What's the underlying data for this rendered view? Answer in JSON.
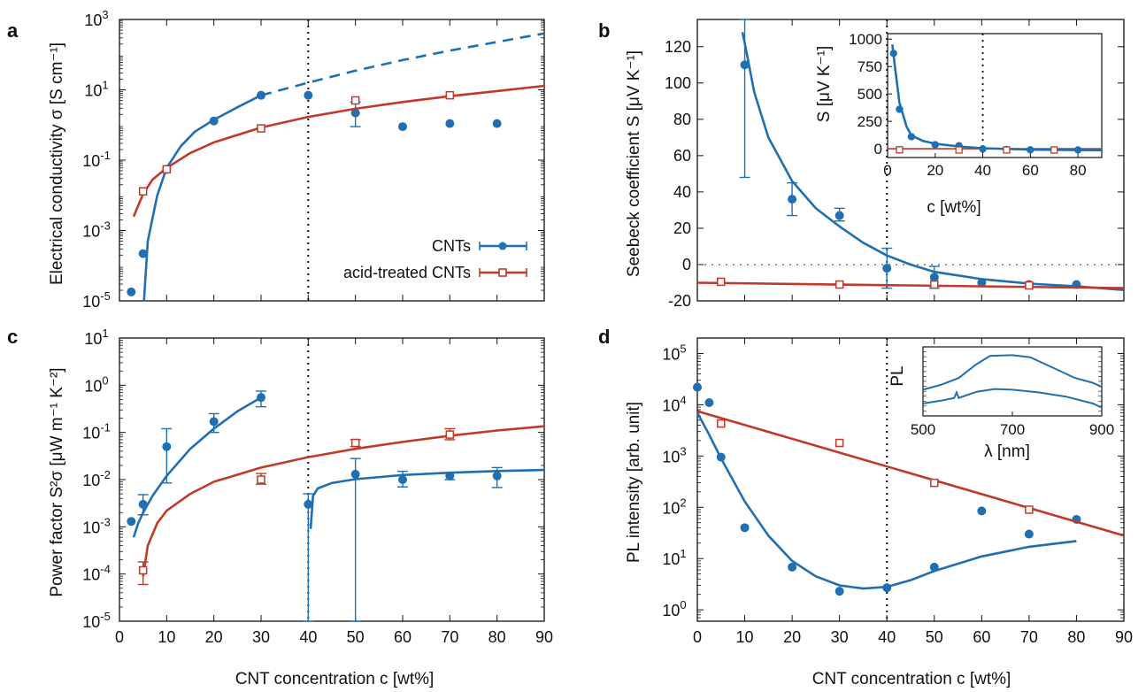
{
  "colors": {
    "cnt": "#1f6fb2",
    "acid": "#c0392b",
    "axis": "#111111"
  },
  "x_shared_label": "CNT concentration c [wt%]",
  "chart_data": [
    {
      "panel": "a",
      "type": "scatter",
      "ylabel": "Electrical conductivity σ [S cm⁻¹]",
      "y_scale": "log",
      "xlim": [
        0,
        90
      ],
      "ylim": [
        1e-05,
        1000
      ],
      "x_ticks": [
        0,
        10,
        20,
        30,
        40,
        50,
        60,
        70,
        80,
        90
      ],
      "y_ticks": [
        {
          "v": 1e-05,
          "base": "10",
          "exp": "-5"
        },
        {
          "v": 0.001,
          "base": "10",
          "exp": "-3"
        },
        {
          "v": 0.1,
          "base": "10",
          "exp": "-1"
        },
        {
          "v": 10,
          "base": "10",
          "exp": "1"
        },
        {
          "v": 1000,
          "base": "10",
          "exp": "3"
        }
      ],
      "legend": {
        "position": "bottom-right",
        "entries": [
          "CNTs",
          "acid-treated CNTs"
        ]
      },
      "series": [
        {
          "name": "CNTs",
          "marker": "circle",
          "points": [
            {
              "x": 2.5,
              "y": 1.8e-05
            },
            {
              "x": 5,
              "y": 0.00022
            },
            {
              "x": 10,
              "y": 0.055
            },
            {
              "x": 20,
              "y": 1.3
            },
            {
              "x": 30,
              "y": 7
            },
            {
              "x": 40,
              "y": 7
            },
            {
              "x": 50,
              "y": 2.2,
              "ylo": 0.9,
              "yhi": 4.5
            },
            {
              "x": 60,
              "y": 0.9
            },
            {
              "x": 70,
              "y": 1.1
            },
            {
              "x": 80,
              "y": 1.1
            }
          ],
          "fit": [
            {
              "x": 5.2,
              "y": 9e-06
            },
            {
              "x": 6,
              "y": 0.0005
            },
            {
              "x": 8,
              "y": 0.01
            },
            {
              "x": 10,
              "y": 0.06
            },
            {
              "x": 13,
              "y": 0.25
            },
            {
              "x": 16,
              "y": 0.65
            },
            {
              "x": 20,
              "y": 1.4
            },
            {
              "x": 25,
              "y": 3.2
            },
            {
              "x": 30,
              "y": 7
            }
          ],
          "fit_dashed": [
            {
              "x": 30,
              "y": 7
            },
            {
              "x": 40,
              "y": 16
            },
            {
              "x": 50,
              "y": 35
            },
            {
              "x": 60,
              "y": 70
            },
            {
              "x": 70,
              "y": 130
            },
            {
              "x": 80,
              "y": 230
            },
            {
              "x": 90,
              "y": 400
            }
          ]
        },
        {
          "name": "acid-treated CNTs",
          "marker": "square",
          "points": [
            {
              "x": 5,
              "y": 0.013
            },
            {
              "x": 10,
              "y": 0.055
            },
            {
              "x": 30,
              "y": 0.8
            },
            {
              "x": 50,
              "y": 5
            },
            {
              "x": 70,
              "y": 7
            }
          ],
          "fit": [
            {
              "x": 3,
              "y": 0.0025
            },
            {
              "x": 5,
              "y": 0.011
            },
            {
              "x": 7,
              "y": 0.028
            },
            {
              "x": 10,
              "y": 0.06
            },
            {
              "x": 15,
              "y": 0.16
            },
            {
              "x": 20,
              "y": 0.32
            },
            {
              "x": 30,
              "y": 0.85
            },
            {
              "x": 40,
              "y": 1.7
            },
            {
              "x": 50,
              "y": 2.9
            },
            {
              "x": 60,
              "y": 4.5
            },
            {
              "x": 70,
              "y": 6.6
            },
            {
              "x": 80,
              "y": 9.2
            },
            {
              "x": 90,
              "y": 13
            }
          ]
        }
      ]
    },
    {
      "panel": "b",
      "type": "scatter",
      "ylabel": "Seebeck coefficient S [μV K⁻¹]",
      "y_scale": "linear",
      "xlim": [
        0,
        90
      ],
      "ylim": [
        -20,
        135
      ],
      "x_ticks": [
        0,
        10,
        20,
        30,
        40,
        50,
        60,
        70,
        80,
        90
      ],
      "y_ticks": [
        -20,
        0,
        20,
        40,
        60,
        80,
        100,
        120
      ],
      "series": [
        {
          "name": "CNTs",
          "marker": "circle",
          "points": [
            {
              "x": 10,
              "y": 110,
              "ylo": 48,
              "yhi": 135
            },
            {
              "x": 20,
              "y": 36,
              "ylo": 27,
              "yhi": 45
            },
            {
              "x": 30,
              "y": 27,
              "ylo": 24,
              "yhi": 31
            },
            {
              "x": 40,
              "y": -2,
              "ylo": -13,
              "yhi": 9
            },
            {
              "x": 50,
              "y": -7,
              "ylo": -13,
              "yhi": -1
            },
            {
              "x": 60,
              "y": -10
            },
            {
              "x": 70,
              "y": -11
            },
            {
              "x": 80,
              "y": -11
            }
          ],
          "fit": [
            {
              "x": 9.5,
              "y": 128
            },
            {
              "x": 10,
              "y": 122
            },
            {
              "x": 12,
              "y": 95
            },
            {
              "x": 15,
              "y": 70
            },
            {
              "x": 20,
              "y": 46
            },
            {
              "x": 25,
              "y": 31
            },
            {
              "x": 30,
              "y": 21
            },
            {
              "x": 35,
              "y": 12
            },
            {
              "x": 40,
              "y": 5
            },
            {
              "x": 45,
              "y": 0
            },
            {
              "x": 50,
              "y": -4
            },
            {
              "x": 60,
              "y": -8
            },
            {
              "x": 70,
              "y": -10.5
            },
            {
              "x": 80,
              "y": -12
            },
            {
              "x": 90,
              "y": -14
            }
          ]
        },
        {
          "name": "acid-treated CNTs",
          "marker": "square",
          "points": [
            {
              "x": 5,
              "y": -9.5
            },
            {
              "x": 30,
              "y": -11
            },
            {
              "x": 50,
              "y": -11
            },
            {
              "x": 70,
              "y": -11.5
            }
          ],
          "fit": [
            {
              "x": 0,
              "y": -10
            },
            {
              "x": 90,
              "y": -13
            }
          ]
        }
      ],
      "inset": {
        "ylabel": "S [μV K⁻¹]",
        "xlabel": "c [wt%]",
        "xlim": [
          0,
          90
        ],
        "ylim": [
          -80,
          1050
        ],
        "x_ticks": [
          0,
          20,
          40,
          60,
          80
        ],
        "y_ticks": [
          0,
          250,
          500,
          750,
          1000
        ],
        "cnt_points": [
          {
            "x": 2.5,
            "y": 870
          },
          {
            "x": 5,
            "y": 360
          },
          {
            "x": 10,
            "y": 110
          },
          {
            "x": 20,
            "y": 36
          },
          {
            "x": 30,
            "y": 27
          },
          {
            "x": 40,
            "y": -2
          },
          {
            "x": 50,
            "y": -7
          },
          {
            "x": 60,
            "y": -10
          },
          {
            "x": 70,
            "y": -11
          },
          {
            "x": 80,
            "y": -11
          }
        ],
        "cnt_fit": [
          {
            "x": 2,
            "y": 950
          },
          {
            "x": 3,
            "y": 760
          },
          {
            "x": 5,
            "y": 420
          },
          {
            "x": 8,
            "y": 200
          },
          {
            "x": 10,
            "y": 122
          },
          {
            "x": 15,
            "y": 70
          },
          {
            "x": 20,
            "y": 46
          },
          {
            "x": 30,
            "y": 21
          },
          {
            "x": 40,
            "y": 5
          },
          {
            "x": 60,
            "y": -8
          },
          {
            "x": 90,
            "y": -14
          }
        ],
        "acid_points": [
          {
            "x": 5,
            "y": -9.5
          },
          {
            "x": 30,
            "y": -11
          },
          {
            "x": 50,
            "y": -11
          },
          {
            "x": 70,
            "y": -11.5
          }
        ]
      }
    },
    {
      "panel": "c",
      "type": "scatter",
      "ylabel": "Power factor S²σ [μW m⁻¹ K⁻²]",
      "y_scale": "log",
      "xlim": [
        0,
        90
      ],
      "ylim": [
        1e-05,
        10
      ],
      "x_ticks": [
        0,
        10,
        20,
        30,
        40,
        50,
        60,
        70,
        80,
        90
      ],
      "y_ticks": [
        {
          "v": 1e-05,
          "base": "10",
          "exp": "-5"
        },
        {
          "v": 0.0001,
          "base": "10",
          "exp": "-4"
        },
        {
          "v": 0.001,
          "base": "10",
          "exp": "-3"
        },
        {
          "v": 0.01,
          "base": "10",
          "exp": "-2"
        },
        {
          "v": 0.1,
          "base": "10",
          "exp": "-1"
        },
        {
          "v": 1,
          "base": "10",
          "exp": "0"
        },
        {
          "v": 10,
          "base": "10",
          "exp": "1"
        }
      ],
      "series": [
        {
          "name": "CNTs",
          "marker": "circle",
          "points": [
            {
              "x": 2.5,
              "y": 0.0013
            },
            {
              "x": 5,
              "y": 0.003,
              "ylo": 0.0018,
              "yhi": 0.0048
            },
            {
              "x": 10,
              "y": 0.05,
              "ylo": 0.0085,
              "yhi": 0.12
            },
            {
              "x": 20,
              "y": 0.17,
              "ylo": 0.1,
              "yhi": 0.25
            },
            {
              "x": 30,
              "y": 0.55,
              "ylo": 0.35,
              "yhi": 0.75
            },
            {
              "x": 40,
              "y": 0.003,
              "ylo": 1e-05,
              "yhi": 0.005
            },
            {
              "x": 50,
              "y": 0.013,
              "ylo": 1e-05,
              "yhi": 0.028
            },
            {
              "x": 60,
              "y": 0.01,
              "ylo": 0.007,
              "yhi": 0.015
            },
            {
              "x": 70,
              "y": 0.012,
              "ylo": 0.01,
              "yhi": 0.014
            },
            {
              "x": 80,
              "y": 0.012,
              "ylo": 0.0068,
              "yhi": 0.018
            }
          ],
          "fit": [
            {
              "x": 3,
              "y": 0.0006
            },
            {
              "x": 4,
              "y": 0.0012
            },
            {
              "x": 5,
              "y": 0.002
            },
            {
              "x": 7,
              "y": 0.0045
            },
            {
              "x": 10,
              "y": 0.012
            },
            {
              "x": 15,
              "y": 0.045
            },
            {
              "x": 20,
              "y": 0.12
            },
            {
              "x": 25,
              "y": 0.28
            },
            {
              "x": 30,
              "y": 0.55
            }
          ],
          "fit2": [
            {
              "x": 40.5,
              "y": 0.0009
            },
            {
              "x": 41,
              "y": 0.0045
            },
            {
              "x": 42,
              "y": 0.0065
            },
            {
              "x": 45,
              "y": 0.0085
            },
            {
              "x": 50,
              "y": 0.0102
            },
            {
              "x": 60,
              "y": 0.0125
            },
            {
              "x": 70,
              "y": 0.014
            },
            {
              "x": 80,
              "y": 0.0152
            },
            {
              "x": 90,
              "y": 0.016
            }
          ]
        },
        {
          "name": "acid-treated CNTs",
          "marker": "square",
          "points": [
            {
              "x": 5,
              "y": 0.00012,
              "ylo": 6e-05,
              "yhi": 0.00018
            },
            {
              "x": 30,
              "y": 0.01,
              "ylo": 0.008,
              "yhi": 0.0135
            },
            {
              "x": 50,
              "y": 0.06,
              "ylo": 0.05,
              "yhi": 0.07
            },
            {
              "x": 70,
              "y": 0.09,
              "ylo": 0.07,
              "yhi": 0.12
            }
          ],
          "fit": [
            {
              "x": 5,
              "y": 9e-05
            },
            {
              "x": 6,
              "y": 0.0004
            },
            {
              "x": 8,
              "y": 0.0012
            },
            {
              "x": 10,
              "y": 0.0022
            },
            {
              "x": 15,
              "y": 0.005
            },
            {
              "x": 20,
              "y": 0.009
            },
            {
              "x": 30,
              "y": 0.018
            },
            {
              "x": 40,
              "y": 0.03
            },
            {
              "x": 50,
              "y": 0.045
            },
            {
              "x": 60,
              "y": 0.063
            },
            {
              "x": 70,
              "y": 0.085
            },
            {
              "x": 80,
              "y": 0.11
            },
            {
              "x": 90,
              "y": 0.135
            }
          ]
        }
      ]
    },
    {
      "panel": "d",
      "type": "scatter",
      "ylabel": "PL intensity [arb. unit]",
      "y_scale": "log",
      "xlim": [
        0,
        90
      ],
      "ylim": [
        0.6,
        200000
      ],
      "x_ticks": [
        0,
        10,
        20,
        30,
        40,
        50,
        60,
        70,
        80,
        90
      ],
      "y_ticks": [
        {
          "v": 1,
          "base": "10",
          "exp": "0"
        },
        {
          "v": 10,
          "base": "10",
          "exp": "1"
        },
        {
          "v": 100,
          "base": "10",
          "exp": "2"
        },
        {
          "v": 1000,
          "base": "10",
          "exp": "3"
        },
        {
          "v": 10000,
          "base": "10",
          "exp": "4"
        },
        {
          "v": 100000,
          "base": "10",
          "exp": "5"
        }
      ],
      "series": [
        {
          "name": "CNTs",
          "marker": "circle",
          "points": [
            {
              "x": 0,
              "y": 22000
            },
            {
              "x": 2.5,
              "y": 11000
            },
            {
              "x": 5,
              "y": 950
            },
            {
              "x": 10,
              "y": 40
            },
            {
              "x": 20,
              "y": 6.8
            },
            {
              "x": 30,
              "y": 2.3
            },
            {
              "x": 40,
              "y": 2.7
            },
            {
              "x": 50,
              "y": 6.8
            },
            {
              "x": 60,
              "y": 85
            },
            {
              "x": 70,
              "y": 30
            },
            {
              "x": 80,
              "y": 58
            }
          ],
          "fit": [
            {
              "x": 0,
              "y": 7000
            },
            {
              "x": 2.5,
              "y": 2600
            },
            {
              "x": 5,
              "y": 900
            },
            {
              "x": 10,
              "y": 130
            },
            {
              "x": 15,
              "y": 28
            },
            {
              "x": 20,
              "y": 9
            },
            {
              "x": 25,
              "y": 4.5
            },
            {
              "x": 30,
              "y": 3
            },
            {
              "x": 35,
              "y": 2.6
            },
            {
              "x": 40,
              "y": 2.8
            },
            {
              "x": 45,
              "y": 3.8
            },
            {
              "x": 50,
              "y": 5.7
            },
            {
              "x": 60,
              "y": 11
            },
            {
              "x": 70,
              "y": 17
            },
            {
              "x": 80,
              "y": 22
            }
          ]
        },
        {
          "name": "acid-treated CNTs",
          "marker": "square",
          "points": [
            {
              "x": 5,
              "y": 4300
            },
            {
              "x": 30,
              "y": 1800
            },
            {
              "x": 50,
              "y": 300
            },
            {
              "x": 70,
              "y": 90
            }
          ],
          "fit": [
            {
              "x": 0,
              "y": 7500
            },
            {
              "x": 90,
              "y": 28
            }
          ]
        }
      ],
      "inset": {
        "ylabel": "PL",
        "xlabel": "λ [nm]",
        "x_ticks": [
          500,
          700,
          900
        ],
        "xlim": [
          500,
          900
        ]
      }
    }
  ]
}
